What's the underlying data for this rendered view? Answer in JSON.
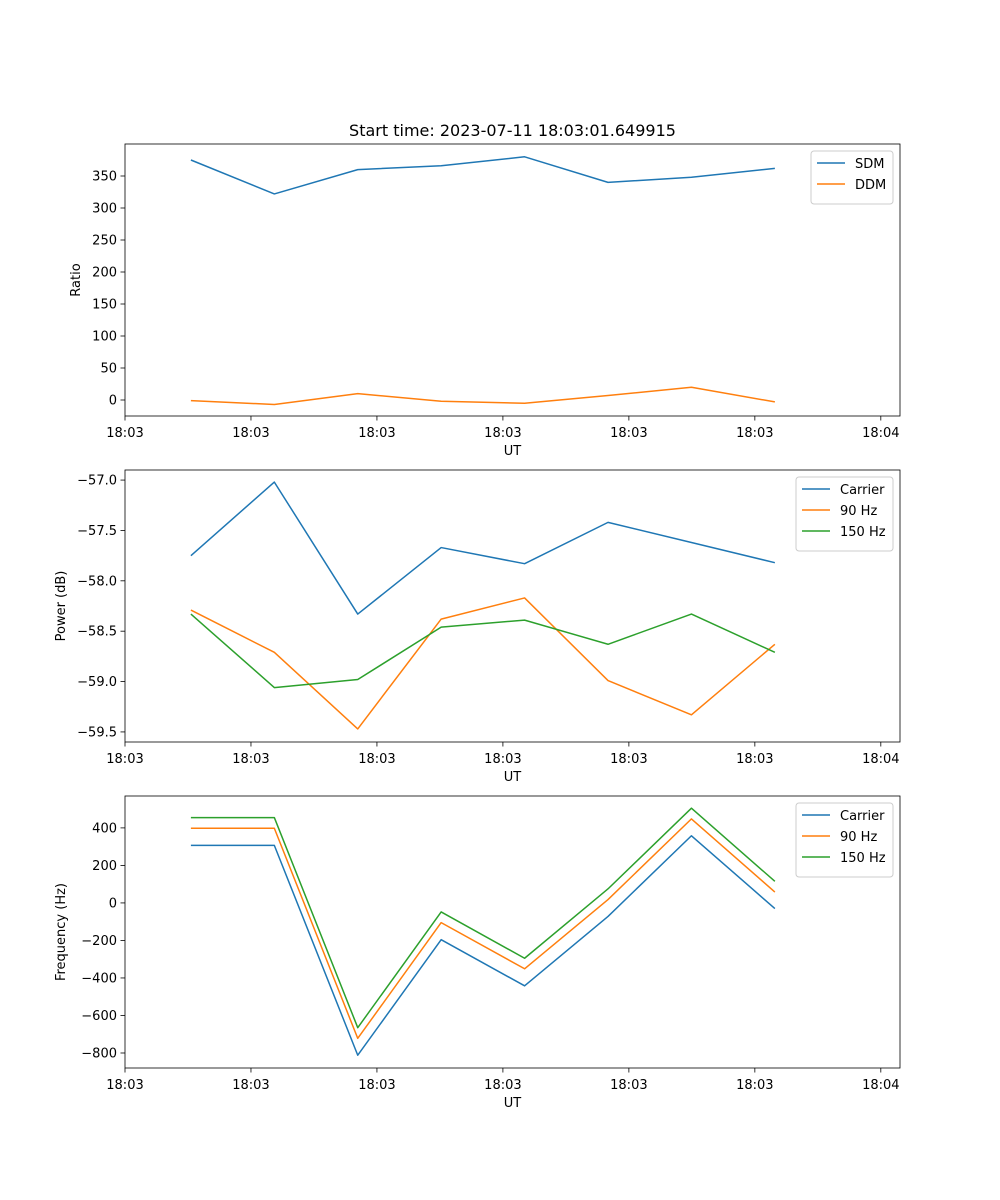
{
  "figure": {
    "title": "Start time: 2023-07-11 18:03:01.649915"
  },
  "colors": {
    "blue": "#1f77b4",
    "orange": "#ff7f0e",
    "green": "#2ca02c"
  },
  "chart_data": [
    {
      "type": "line",
      "title": "Start time: 2023-07-11 18:03:01.649915",
      "xlabel": "UT",
      "ylabel": "Ratio",
      "x": [
        1,
        2,
        3,
        4,
        5,
        6,
        7,
        8
      ],
      "xlim": [
        0.21,
        9.5
      ],
      "ylim": [
        -25,
        400
      ],
      "xticks": [
        0.21,
        1.72,
        3.23,
        4.74,
        6.25,
        7.76,
        9.27
      ],
      "xtick_labels": [
        "18:03",
        "18:03",
        "18:03",
        "18:03",
        "18:03",
        "18:03",
        "18:04"
      ],
      "yticks": [
        0,
        50,
        100,
        150,
        200,
        250,
        300,
        350
      ],
      "ytick_labels": [
        "0",
        "50",
        "100",
        "150",
        "200",
        "250",
        "300",
        "350"
      ],
      "legend": "upper right",
      "series": [
        {
          "name": "SDM",
          "color": "#1f77b4",
          "values": [
            375,
            322,
            360,
            366,
            380,
            340,
            348,
            362
          ]
        },
        {
          "name": "DDM",
          "color": "#ff7f0e",
          "values": [
            -1,
            -7,
            10,
            -2,
            -5,
            7,
            20,
            -3
          ]
        }
      ]
    },
    {
      "type": "line",
      "title": "",
      "xlabel": "UT",
      "ylabel": "Power (dB)",
      "x": [
        1,
        2,
        3,
        4,
        5,
        6,
        7,
        8
      ],
      "xlim": [
        0.21,
        9.5
      ],
      "ylim": [
        -59.6,
        -56.9
      ],
      "xticks": [
        0.21,
        1.72,
        3.23,
        4.74,
        6.25,
        7.76,
        9.27
      ],
      "xtick_labels": [
        "18:03",
        "18:03",
        "18:03",
        "18:03",
        "18:03",
        "18:03",
        "18:04"
      ],
      "yticks": [
        -59.5,
        -59.0,
        -58.5,
        -58.0,
        -57.5,
        -57.0
      ],
      "ytick_labels": [
        "−59.5",
        "−59.0",
        "−58.5",
        "−58.0",
        "−57.5",
        "−57.0"
      ],
      "legend": "upper right",
      "series": [
        {
          "name": "Carrier",
          "color": "#1f77b4",
          "values": [
            -57.75,
            -57.02,
            -58.33,
            -57.67,
            -57.83,
            -57.42,
            -57.62,
            -57.82
          ]
        },
        {
          "name": "90 Hz",
          "color": "#ff7f0e",
          "values": [
            -58.29,
            -58.71,
            -59.47,
            -58.38,
            -58.17,
            -58.99,
            -59.33,
            -58.63
          ]
        },
        {
          "name": "150 Hz",
          "color": "#2ca02c",
          "values": [
            -58.33,
            -59.06,
            -58.98,
            -58.46,
            -58.39,
            -58.63,
            -58.33,
            -58.71
          ]
        }
      ]
    },
    {
      "type": "line",
      "title": "",
      "xlabel": "UT",
      "ylabel": "Frequency (Hz)",
      "x": [
        1,
        2,
        3,
        4,
        5,
        6,
        7,
        8
      ],
      "xlim": [
        0.21,
        9.5
      ],
      "ylim": [
        -880,
        570
      ],
      "xticks": [
        0.21,
        1.72,
        3.23,
        4.74,
        6.25,
        7.76,
        9.27
      ],
      "xtick_labels": [
        "18:03",
        "18:03",
        "18:03",
        "18:03",
        "18:03",
        "18:03",
        "18:04"
      ],
      "yticks": [
        -800,
        -600,
        -400,
        -200,
        0,
        200,
        400
      ],
      "ytick_labels": [
        "−800",
        "−600",
        "−400",
        "−200",
        "0",
        "200",
        "400"
      ],
      "legend": "upper right",
      "series": [
        {
          "name": "Carrier",
          "color": "#1f77b4",
          "values": [
            307,
            307,
            -812,
            -196,
            -442,
            -72,
            358,
            -30
          ]
        },
        {
          "name": "90 Hz",
          "color": "#ff7f0e",
          "values": [
            398,
            398,
            -722,
            -105,
            -351,
            18,
            448,
            58
          ]
        },
        {
          "name": "150 Hz",
          "color": "#2ca02c",
          "values": [
            455,
            455,
            -665,
            -48,
            -295,
            75,
            505,
            115
          ]
        }
      ]
    }
  ]
}
